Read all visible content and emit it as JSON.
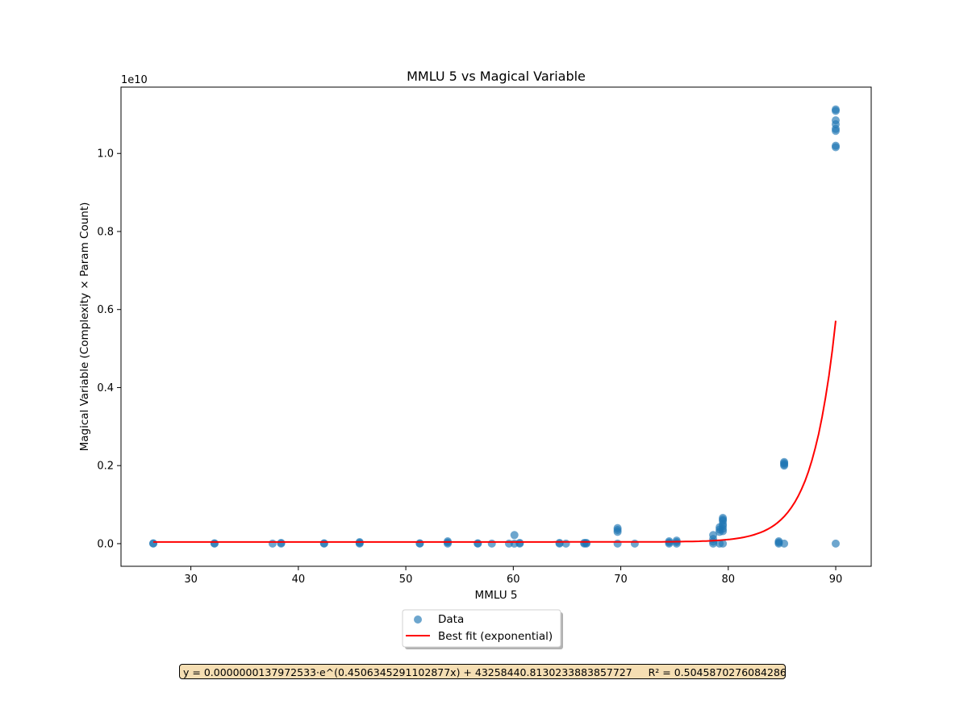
{
  "chart_data": {
    "type": "scatter",
    "title": "MMLU 5 vs Magical Variable",
    "xlabel": "MMLU 5",
    "ylabel": "Magical Variable (Complexity × Param Count)",
    "y_offset_label": "1e10",
    "xlim": [
      23.5,
      93.3
    ],
    "ylim": [
      -0.058,
      1.17
    ],
    "x_ticks": [
      30,
      40,
      50,
      60,
      70,
      80,
      90
    ],
    "y_ticks": [
      0.0,
      0.2,
      0.4,
      0.6,
      0.8,
      1.0
    ],
    "y_tick_labels": [
      "0.0",
      "0.2",
      "0.4",
      "0.6",
      "0.8",
      "1.0"
    ],
    "grid": false,
    "legend_position": "below-center",
    "colors": {
      "data": "#1f77b4",
      "fit": "#ff0000",
      "equation_bg": "#f5deb3"
    },
    "series": [
      {
        "name": "Data",
        "marker": "circle",
        "points": [
          [
            26.5,
            0.0
          ],
          [
            26.5,
            0.001
          ],
          [
            32.2,
            0.0
          ],
          [
            32.2,
            0.001
          ],
          [
            37.6,
            0.0
          ],
          [
            38.4,
            0.0
          ],
          [
            38.4,
            0.002
          ],
          [
            42.4,
            0.0
          ],
          [
            42.4,
            0.001
          ],
          [
            45.7,
            0.0
          ],
          [
            45.7,
            0.002
          ],
          [
            45.7,
            0.004
          ],
          [
            51.3,
            0.0
          ],
          [
            51.3,
            0.001
          ],
          [
            53.9,
            0.0
          ],
          [
            53.9,
            0.003
          ],
          [
            53.9,
            0.006
          ],
          [
            56.7,
            0.0
          ],
          [
            56.7,
            0.001
          ],
          [
            58.0,
            0.0
          ],
          [
            59.6,
            0.0
          ],
          [
            60.1,
            0.0
          ],
          [
            60.1,
            0.022
          ],
          [
            60.6,
            0.0
          ],
          [
            60.6,
            0.002
          ],
          [
            64.3,
            0.0
          ],
          [
            64.3,
            0.002
          ],
          [
            64.9,
            0.0
          ],
          [
            66.6,
            0.0
          ],
          [
            66.6,
            0.002
          ],
          [
            66.8,
            0.0
          ],
          [
            66.8,
            0.002
          ],
          [
            69.7,
            0.0
          ],
          [
            69.7,
            0.03
          ],
          [
            69.7,
            0.035
          ],
          [
            69.7,
            0.04
          ],
          [
            71.3,
            0.0
          ],
          [
            74.5,
            0.0
          ],
          [
            74.5,
            0.003
          ],
          [
            74.5,
            0.006
          ],
          [
            75.2,
            0.0
          ],
          [
            75.2,
            0.004
          ],
          [
            75.2,
            0.008
          ],
          [
            78.6,
            0.0
          ],
          [
            78.6,
            0.005
          ],
          [
            78.6,
            0.012
          ],
          [
            78.6,
            0.022
          ],
          [
            79.2,
            0.0
          ],
          [
            79.2,
            0.03
          ],
          [
            79.2,
            0.036
          ],
          [
            79.2,
            0.042
          ],
          [
            79.5,
            0.0
          ],
          [
            79.5,
            0.032
          ],
          [
            79.5,
            0.038
          ],
          [
            79.5,
            0.045
          ],
          [
            79.5,
            0.05
          ],
          [
            79.5,
            0.058
          ],
          [
            79.5,
            0.062
          ],
          [
            79.5,
            0.066
          ],
          [
            84.7,
            0.0
          ],
          [
            84.7,
            0.003
          ],
          [
            84.7,
            0.006
          ],
          [
            85.2,
            0.0
          ],
          [
            85.2,
            0.2
          ],
          [
            85.2,
            0.203
          ],
          [
            85.2,
            0.206
          ],
          [
            85.2,
            0.209
          ],
          [
            90.0,
            0.0
          ],
          [
            90.0,
            1.016
          ],
          [
            90.0,
            1.02
          ],
          [
            90.0,
            1.058
          ],
          [
            90.0,
            1.063
          ],
          [
            90.0,
            1.075
          ],
          [
            90.0,
            1.085
          ],
          [
            90.0,
            1.109
          ],
          [
            90.0,
            1.113
          ]
        ]
      },
      {
        "name": "Best fit (exponential)",
        "type": "line",
        "equation": {
          "a": 1.37972533e-08,
          "b": 0.4506345291102877,
          "c": 43258440.81302339,
          "y_scale": 10000000000.0
        },
        "x_range": [
          26.5,
          90.0
        ]
      }
    ],
    "annotation": "y = 0.0000000137972533·e^(0.4506345291102877x) + 43258440.8130233883857727     R² = 0.5045870276084286"
  }
}
